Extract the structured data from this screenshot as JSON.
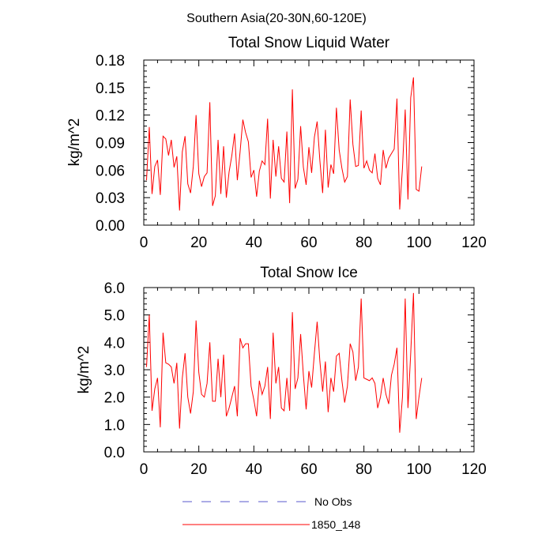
{
  "figure_title": "Southern Asia(20-30N,60-120E)",
  "chart_data": [
    {
      "type": "line",
      "title": "Total Snow Liquid Water",
      "xlabel": "",
      "ylabel": "kg/m^2",
      "xlim": [
        0,
        120
      ],
      "ylim": [
        0,
        0.18
      ],
      "xticks": [
        "0",
        "20",
        "40",
        "60",
        "80",
        "100",
        "120"
      ],
      "yticks": [
        "0.00",
        "0.03",
        "0.06",
        "0.09",
        "0.12",
        "0.15",
        "0.18"
      ],
      "grid": false,
      "series": [
        {
          "name": "1850_148",
          "color": "#ff0000",
          "x": [
            1,
            2,
            3,
            4,
            5,
            6,
            7,
            8,
            9,
            10,
            11,
            12,
            13,
            14,
            15,
            16,
            17,
            18,
            19,
            20,
            21,
            22,
            23,
            24,
            25,
            26,
            27,
            28,
            29,
            30,
            31,
            32,
            33,
            34,
            35,
            36,
            37,
            38,
            39,
            40,
            41,
            42,
            43,
            44,
            45,
            46,
            47,
            48,
            49,
            50,
            51,
            52,
            53,
            54,
            55,
            56,
            57,
            58,
            59,
            60,
            61,
            62,
            63,
            64,
            65,
            66,
            67,
            68,
            69,
            70,
            71,
            72,
            73,
            74,
            75,
            76,
            77,
            78,
            79,
            80,
            81,
            82,
            83,
            84,
            85,
            86,
            87,
            88,
            89,
            90,
            91,
            92,
            93,
            94,
            95,
            96,
            97,
            98,
            99,
            100,
            101
          ],
          "y": [
            0.049,
            0.107,
            0.034,
            0.064,
            0.071,
            0.033,
            0.097,
            0.094,
            0.076,
            0.093,
            0.063,
            0.075,
            0.016,
            0.08,
            0.097,
            0.045,
            0.035,
            0.064,
            0.12,
            0.056,
            0.042,
            0.053,
            0.057,
            0.134,
            0.021,
            0.032,
            0.093,
            0.034,
            0.086,
            0.03,
            0.058,
            0.076,
            0.1,
            0.049,
            0.08,
            0.115,
            0.101,
            0.091,
            0.052,
            0.06,
            0.031,
            0.059,
            0.07,
            0.066,
            0.116,
            0.029,
            0.093,
            0.053,
            0.086,
            0.051,
            0.047,
            0.102,
            0.024,
            0.148,
            0.04,
            0.05,
            0.108,
            0.063,
            0.044,
            0.085,
            0.057,
            0.096,
            0.113,
            0.07,
            0.035,
            0.104,
            0.041,
            0.066,
            0.056,
            0.128,
            0.082,
            0.062,
            0.047,
            0.053,
            0.137,
            0.088,
            0.064,
            0.065,
            0.125,
            0.062,
            0.07,
            0.06,
            0.057,
            0.078,
            0.051,
            0.044,
            0.082,
            0.062,
            0.073,
            0.078,
            0.083,
            0.138,
            0.017,
            0.062,
            0.126,
            0.028,
            0.139,
            0.161,
            0.039,
            0.037,
            0.064
          ]
        }
      ]
    },
    {
      "type": "line",
      "title": "Total Snow Ice",
      "xlabel": "",
      "ylabel": "kg/m^2",
      "xlim": [
        0,
        120
      ],
      "ylim": [
        0,
        6.0
      ],
      "xticks": [
        "0",
        "20",
        "40",
        "60",
        "80",
        "100",
        "120"
      ],
      "yticks": [
        "0.0",
        "1.0",
        "2.0",
        "3.0",
        "4.0",
        "5.0",
        "6.0"
      ],
      "grid": false,
      "series": [
        {
          "name": "1850_148",
          "color": "#ff0000",
          "x": [
            1,
            2,
            3,
            4,
            5,
            6,
            7,
            8,
            9,
            10,
            11,
            12,
            13,
            14,
            15,
            16,
            17,
            18,
            19,
            20,
            21,
            22,
            23,
            24,
            25,
            26,
            27,
            28,
            29,
            30,
            31,
            32,
            33,
            34,
            35,
            36,
            37,
            38,
            39,
            40,
            41,
            42,
            43,
            44,
            45,
            46,
            47,
            48,
            49,
            50,
            51,
            52,
            53,
            54,
            55,
            56,
            57,
            58,
            59,
            60,
            61,
            62,
            63,
            64,
            65,
            66,
            67,
            68,
            69,
            70,
            71,
            72,
            73,
            74,
            75,
            76,
            77,
            78,
            79,
            80,
            81,
            82,
            83,
            84,
            85,
            86,
            87,
            88,
            89,
            90,
            91,
            92,
            93,
            94,
            95,
            96,
            97,
            98,
            99,
            100,
            101
          ],
          "y": [
            3.1,
            5.0,
            1.5,
            2.3,
            2.7,
            0.9,
            4.35,
            3.25,
            3.2,
            3.1,
            2.5,
            3.25,
            0.85,
            2.7,
            3.6,
            2.0,
            1.4,
            2.2,
            4.8,
            2.9,
            2.1,
            2.0,
            2.5,
            4.0,
            1.85,
            1.85,
            3.4,
            2.0,
            3.55,
            1.3,
            1.6,
            2.0,
            2.4,
            1.3,
            4.15,
            3.8,
            3.95,
            3.95,
            2.4,
            1.9,
            1.3,
            2.6,
            2.1,
            2.4,
            3.1,
            1.2,
            4.35,
            2.5,
            3.1,
            1.6,
            1.5,
            2.7,
            1.5,
            5.1,
            2.3,
            2.7,
            4.3,
            2.8,
            1.55,
            2.95,
            2.35,
            3.6,
            4.75,
            3.3,
            2.2,
            3.3,
            1.45,
            2.7,
            2.2,
            3.5,
            3.6,
            2.6,
            1.8,
            2.4,
            3.95,
            3.65,
            2.6,
            3.1,
            5.6,
            2.7,
            2.65,
            2.6,
            2.7,
            2.5,
            1.6,
            2.0,
            2.7,
            2.1,
            1.75,
            2.8,
            3.2,
            3.8,
            0.7,
            2.0,
            5.6,
            1.6,
            3.6,
            5.8,
            1.2,
            2.0,
            2.7
          ]
        }
      ]
    }
  ],
  "legend": [
    {
      "label": "No Obs",
      "color": "#5a5acd",
      "dash": true
    },
    {
      "label": "1850_148",
      "color": "#ff0000",
      "dash": false
    }
  ]
}
